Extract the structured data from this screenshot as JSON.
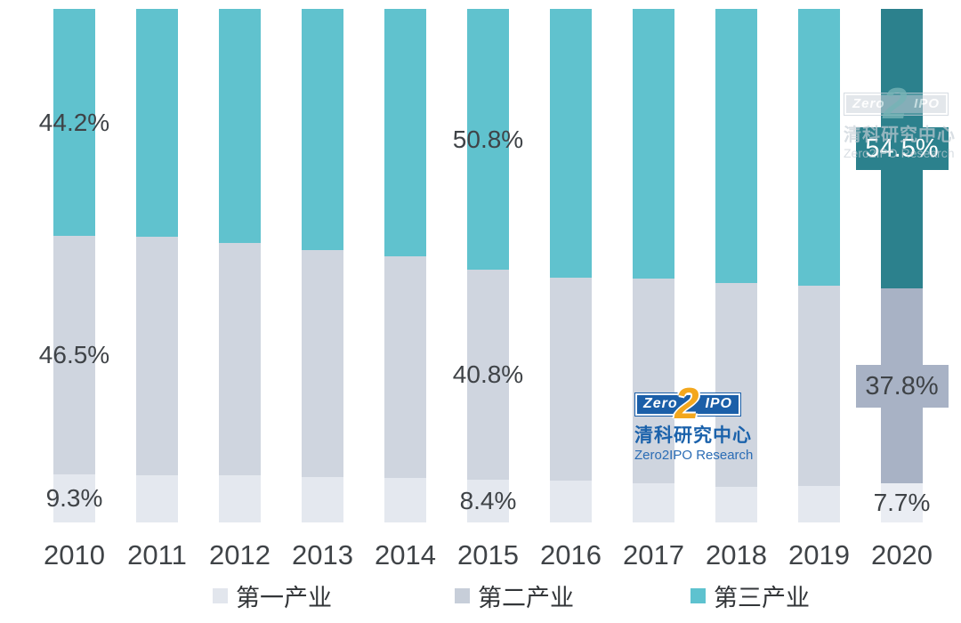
{
  "chart_data": {
    "type": "bar",
    "stacked": true,
    "title": "",
    "xlabel": "",
    "ylabel": "",
    "ylim": [
      0,
      100
    ],
    "grid": false,
    "legend_position": "bottom",
    "categories": [
      "2010",
      "2011",
      "2012",
      "2013",
      "2014",
      "2015",
      "2016",
      "2017",
      "2018",
      "2019",
      "2020"
    ],
    "series": [
      {
        "name": "第一产业",
        "color": "#e4e8ef",
        "highlight_color": "#eaedf3",
        "values": [
          9.3,
          9.2,
          9.1,
          8.9,
          8.7,
          8.4,
          8.1,
          7.6,
          7.0,
          7.1,
          7.7
        ]
      },
      {
        "name": "第二产业",
        "color": "#cfd5df",
        "highlight_color": "#a8b2c5",
        "values": [
          46.5,
          46.5,
          45.4,
          44.2,
          43.2,
          40.8,
          39.5,
          39.9,
          39.7,
          39.0,
          37.8
        ]
      },
      {
        "name": "第三产业",
        "color": "#60c2ce",
        "highlight_color": "#2c818d",
        "values": [
          44.2,
          44.3,
          45.5,
          46.9,
          48.1,
          50.8,
          52.4,
          52.5,
          53.3,
          53.9,
          54.5
        ]
      }
    ],
    "highlight_category": "2020",
    "data_labels": [
      {
        "category": "2010",
        "series": "第三产业",
        "text": "44.2%",
        "style": "plain"
      },
      {
        "category": "2010",
        "series": "第二产业",
        "text": "46.5%",
        "style": "plain"
      },
      {
        "category": "2010",
        "series": "第一产业",
        "text": "9.3%",
        "style": "plain"
      },
      {
        "category": "2015",
        "series": "第三产业",
        "text": "50.8%",
        "style": "plain"
      },
      {
        "category": "2015",
        "series": "第二产业",
        "text": "40.8%",
        "style": "plain"
      },
      {
        "category": "2015",
        "series": "第一产业",
        "text": "8.4%",
        "style": "plain"
      },
      {
        "category": "2020",
        "series": "第三产业",
        "text": "54.5%",
        "style": "callout",
        "box_color": "#2c818d",
        "text_color": "#ffffff"
      },
      {
        "category": "2020",
        "series": "第二产业",
        "text": "37.8%",
        "style": "callout",
        "box_color": "#a8b2c5",
        "text_color": "#3f4347"
      },
      {
        "category": "2020",
        "series": "第一产业",
        "text": "7.7%",
        "style": "plain"
      }
    ]
  },
  "legend": {
    "items": [
      {
        "label": "第一产业",
        "color": "#e2e6ed"
      },
      {
        "label": "第二产业",
        "color": "#c7ced9"
      },
      {
        "label": "第三产业",
        "color": "#5ec2cf"
      }
    ]
  },
  "branding": {
    "zero": "Zero",
    "two": "2",
    "ipo": "IPO",
    "cn_name": "清科研究中心",
    "en_name": "Zero2IPO Research"
  },
  "colors": {
    "label_text": "#3f4347",
    "axis_text": "#3f4347",
    "tertiary_teal": "#60c2ce",
    "tertiary_teal_highlight": "#2c818d",
    "secondary_gray": "#cfd5df",
    "secondary_gray_highlight": "#a8b2c5",
    "primary_light": "#e4e8ef"
  }
}
